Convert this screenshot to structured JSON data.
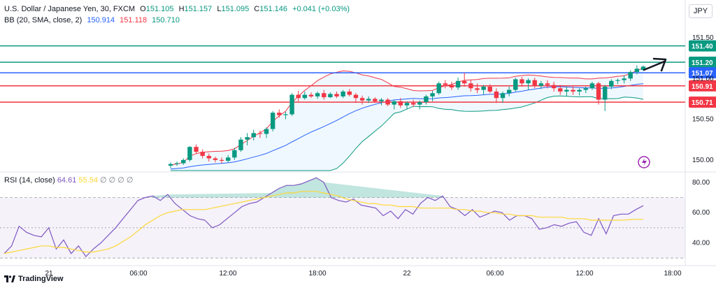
{
  "header": {
    "symbol_line": "U.S. Dollar / Japanese Yen, 30, FXCM",
    "ohlc": {
      "o_label": "O",
      "o": "151.105",
      "h_label": "H",
      "h": "151.157",
      "l_label": "L",
      "l": "151.095",
      "c_label": "C",
      "c": "151.146",
      "change": "+0.041 (+0.03%)"
    },
    "bb_label": "BB (20, SMA, close, 2)",
    "bb_basis": "150.914",
    "bb_upper": "151.118",
    "bb_lower": "150.710"
  },
  "currency_button": "JPY",
  "rsi": {
    "label": "RSI (14, close)",
    "value": "64.61",
    "ma_value": "55.54",
    "placeholders": "∅ ∅ ∅ ∅"
  },
  "branding": "TradingView",
  "colors": {
    "up": "#089981",
    "down": "#f23645",
    "bb_upper": "#f23645",
    "bb_basis": "#2962ff",
    "bb_lower": "#089981",
    "rsi_line": "#7e57c2",
    "rsi_ma": "#fdd835"
  },
  "chart_data": [
    {
      "type": "candlestick",
      "name": "price",
      "y_ticks": [
        "151.50",
        "151.00",
        "150.50",
        "150.00"
      ],
      "ylim": [
        149.87,
        151.62
      ],
      "x_ticks": [
        "21",
        "06:00",
        "12:00",
        "18:00",
        "22",
        "06:00",
        "12:00",
        "18:00"
      ],
      "horizontal_levels": [
        {
          "label": "151.40",
          "value": 151.4,
          "color": "#089981"
        },
        {
          "label": "151.20",
          "value": 151.2,
          "color": "#089981"
        },
        {
          "label": "151.07",
          "value": 151.07,
          "color": "#2962ff"
        },
        {
          "label": "150.91",
          "value": 150.91,
          "color": "#f23645"
        },
        {
          "label": "150.71",
          "value": 150.71,
          "color": "#f23645"
        }
      ],
      "candles": [
        [
          149.93,
          149.97,
          149.9,
          149.95
        ],
        [
          149.95,
          149.98,
          149.93,
          149.96
        ],
        [
          149.96,
          150.02,
          149.94,
          150.0
        ],
        [
          150.0,
          150.17,
          149.98,
          150.16
        ],
        [
          150.16,
          150.19,
          150.08,
          150.1
        ],
        [
          150.1,
          150.13,
          150.02,
          150.05
        ],
        [
          150.05,
          150.08,
          149.98,
          150.02
        ],
        [
          150.02,
          150.04,
          149.97,
          150.0
        ],
        [
          150.0,
          150.03,
          149.96,
          149.99
        ],
        [
          149.99,
          150.06,
          149.97,
          150.03
        ],
        [
          150.03,
          150.15,
          150.0,
          150.12
        ],
        [
          150.12,
          150.28,
          150.1,
          150.25
        ],
        [
          150.25,
          150.33,
          150.18,
          150.28
        ],
        [
          150.28,
          150.37,
          150.24,
          150.33
        ],
        [
          150.33,
          150.36,
          150.27,
          150.32
        ],
        [
          150.32,
          150.4,
          150.27,
          150.38
        ],
        [
          150.38,
          150.6,
          150.35,
          150.58
        ],
        [
          150.58,
          150.62,
          150.52,
          150.55
        ],
        [
          150.55,
          150.59,
          150.5,
          150.56
        ],
        [
          150.56,
          150.82,
          150.54,
          150.8
        ],
        [
          150.8,
          150.85,
          150.72,
          150.76
        ],
        [
          150.76,
          150.84,
          150.74,
          150.8
        ],
        [
          150.8,
          150.83,
          150.76,
          150.78
        ],
        [
          150.78,
          150.84,
          150.75,
          150.82
        ],
        [
          150.82,
          150.86,
          150.74,
          150.77
        ],
        [
          150.77,
          150.83,
          150.76,
          150.81
        ],
        [
          150.81,
          150.84,
          150.76,
          150.78
        ],
        [
          150.78,
          150.86,
          150.76,
          150.84
        ],
        [
          150.84,
          150.87,
          150.78,
          150.8
        ],
        [
          150.8,
          150.82,
          150.7,
          150.76
        ],
        [
          150.76,
          150.79,
          150.68,
          150.73
        ],
        [
          150.73,
          150.78,
          150.7,
          150.75
        ],
        [
          150.75,
          150.77,
          150.7,
          150.72
        ],
        [
          150.72,
          150.76,
          150.67,
          150.74
        ],
        [
          150.74,
          150.76,
          150.66,
          150.68
        ],
        [
          150.68,
          150.74,
          150.62,
          150.72
        ],
        [
          150.72,
          150.76,
          150.64,
          150.67
        ],
        [
          150.67,
          150.72,
          150.62,
          150.7
        ],
        [
          150.7,
          150.74,
          150.65,
          150.68
        ],
        [
          150.68,
          150.73,
          150.62,
          150.71
        ],
        [
          150.71,
          150.8,
          150.68,
          150.78
        ],
        [
          150.78,
          150.85,
          150.72,
          150.82
        ],
        [
          150.82,
          150.96,
          150.8,
          150.94
        ],
        [
          150.94,
          150.98,
          150.88,
          150.92
        ],
        [
          150.92,
          150.96,
          150.86,
          150.89
        ],
        [
          150.89,
          151.01,
          150.86,
          150.97
        ],
        [
          150.97,
          151.07,
          150.9,
          150.94
        ],
        [
          150.94,
          150.98,
          150.84,
          150.88
        ],
        [
          150.88,
          150.94,
          150.82,
          150.86
        ],
        [
          150.86,
          150.92,
          150.8,
          150.9
        ],
        [
          150.9,
          150.93,
          150.82,
          150.84
        ],
        [
          150.84,
          150.88,
          150.7,
          150.76
        ],
        [
          150.76,
          150.84,
          150.7,
          150.82
        ],
        [
          150.82,
          150.9,
          150.78,
          150.86
        ],
        [
          150.86,
          151.01,
          150.84,
          150.99
        ],
        [
          150.99,
          151.02,
          150.9,
          150.94
        ],
        [
          150.94,
          151.0,
          150.86,
          150.98
        ],
        [
          150.98,
          151.01,
          150.88,
          150.91
        ],
        [
          150.91,
          150.97,
          150.87,
          150.94
        ],
        [
          150.94,
          150.98,
          150.88,
          150.92
        ],
        [
          150.92,
          150.96,
          150.84,
          150.88
        ],
        [
          150.88,
          150.92,
          150.8,
          150.84
        ],
        [
          150.84,
          150.9,
          150.78,
          150.86
        ],
        [
          150.86,
          150.9,
          150.8,
          150.84
        ],
        [
          150.84,
          150.88,
          150.79,
          150.86
        ],
        [
          150.86,
          150.9,
          150.82,
          150.88
        ],
        [
          150.88,
          150.96,
          150.86,
          150.94
        ],
        [
          150.94,
          150.96,
          150.68,
          150.74
        ],
        [
          150.74,
          150.92,
          150.6,
          150.9
        ],
        [
          150.9,
          150.99,
          150.87,
          150.97
        ],
        [
          150.97,
          151.0,
          150.93,
          150.98
        ],
        [
          150.98,
          151.04,
          150.94,
          151.0
        ],
        [
          151.0,
          151.1,
          150.97,
          151.08
        ],
        [
          151.08,
          151.16,
          151.05,
          151.12
        ],
        [
          151.105,
          151.157,
          151.095,
          151.146
        ]
      ]
    },
    {
      "type": "line",
      "name": "RSI",
      "y_ticks": [
        "80.00",
        "60.00",
        "40.00"
      ],
      "ylim": [
        25,
        85
      ],
      "bands": [
        70,
        50,
        30
      ],
      "series": [
        {
          "name": "RSI",
          "values": [
            33,
            38,
            51,
            47,
            45,
            44,
            50,
            36,
            42,
            33,
            38,
            31,
            36,
            40,
            45,
            50,
            56,
            62,
            68,
            70,
            71,
            68,
            72,
            66,
            62,
            58,
            56,
            55,
            50,
            52,
            56,
            60,
            64,
            66,
            67,
            70,
            73,
            76,
            78,
            78,
            79,
            81,
            83,
            80,
            70,
            68,
            67,
            69,
            65,
            64,
            63,
            58,
            61,
            56,
            62,
            59,
            66,
            70,
            68,
            71,
            64,
            62,
            58,
            62,
            57,
            59,
            61,
            60,
            55,
            58,
            58,
            56,
            49,
            50,
            52,
            51,
            53,
            54,
            47,
            45,
            56,
            46,
            58,
            59,
            59,
            62,
            64.61
          ]
        },
        {
          "name": "",
          "values": [
            33,
            34,
            35,
            36,
            37,
            38,
            38,
            37,
            37,
            36,
            35,
            34,
            34,
            35,
            36,
            38,
            41,
            44,
            48,
            52,
            55,
            58,
            60,
            61,
            62,
            62,
            62,
            62,
            63,
            64,
            65,
            66,
            67,
            68,
            69,
            70,
            71,
            72,
            73,
            73,
            74,
            74,
            74,
            73,
            72,
            71,
            69,
            68,
            67,
            66,
            66,
            65,
            65,
            64,
            64,
            64,
            63,
            63,
            63,
            63,
            63,
            62,
            62,
            61,
            61,
            60,
            60,
            59,
            59,
            58,
            58,
            58,
            57,
            57,
            57,
            57,
            56,
            56,
            56,
            55,
            55,
            55,
            55,
            55,
            55.3,
            55.54,
            55.54
          ]
        }
      ]
    }
  ]
}
